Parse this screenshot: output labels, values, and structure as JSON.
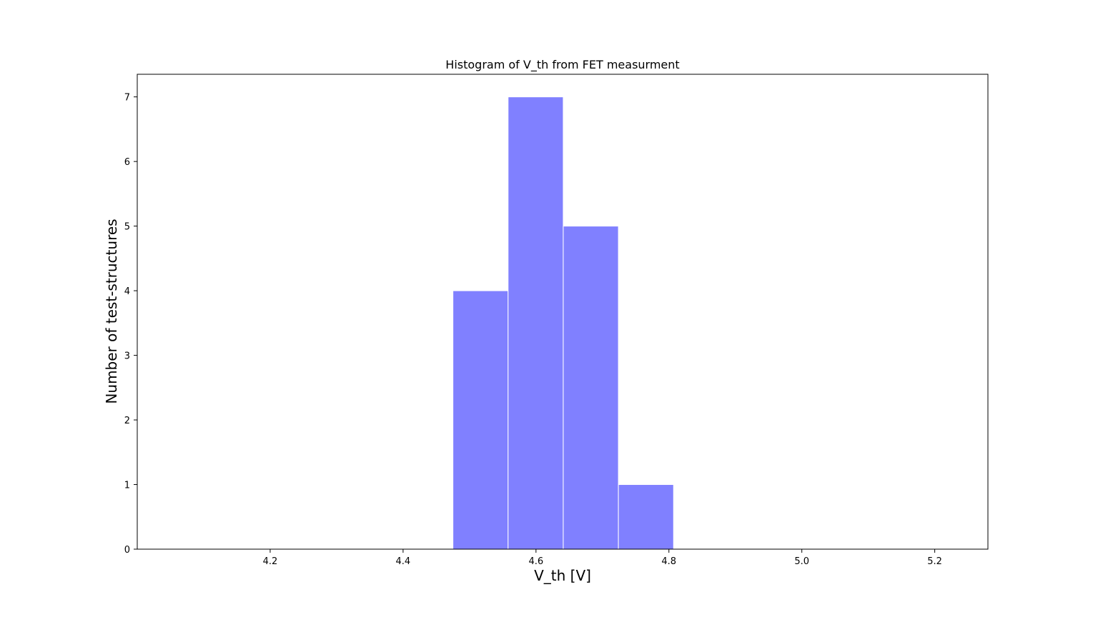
{
  "chart_data": {
    "type": "bar",
    "title": "Histogram of V_th from FET measurment",
    "xlabel": "V_th [V]",
    "ylabel": "Number of test-structures",
    "xlim": [
      4.0,
      5.28
    ],
    "ylim": [
      0,
      7.35
    ],
    "xticks": [
      4.2,
      4.4,
      4.6,
      4.8,
      5.0,
      5.2
    ],
    "yticks": [
      0,
      1,
      2,
      3,
      4,
      5,
      6,
      7
    ],
    "bins": [
      {
        "x0": 4.475,
        "x1": 4.558,
        "count": 4
      },
      {
        "x0": 4.558,
        "x1": 4.641,
        "count": 7
      },
      {
        "x0": 4.641,
        "x1": 4.724,
        "count": 5
      },
      {
        "x0": 4.724,
        "x1": 4.807,
        "count": 1
      }
    ],
    "bar_color": "#8080ff",
    "edge_color": "#ffffff",
    "grid": false
  }
}
